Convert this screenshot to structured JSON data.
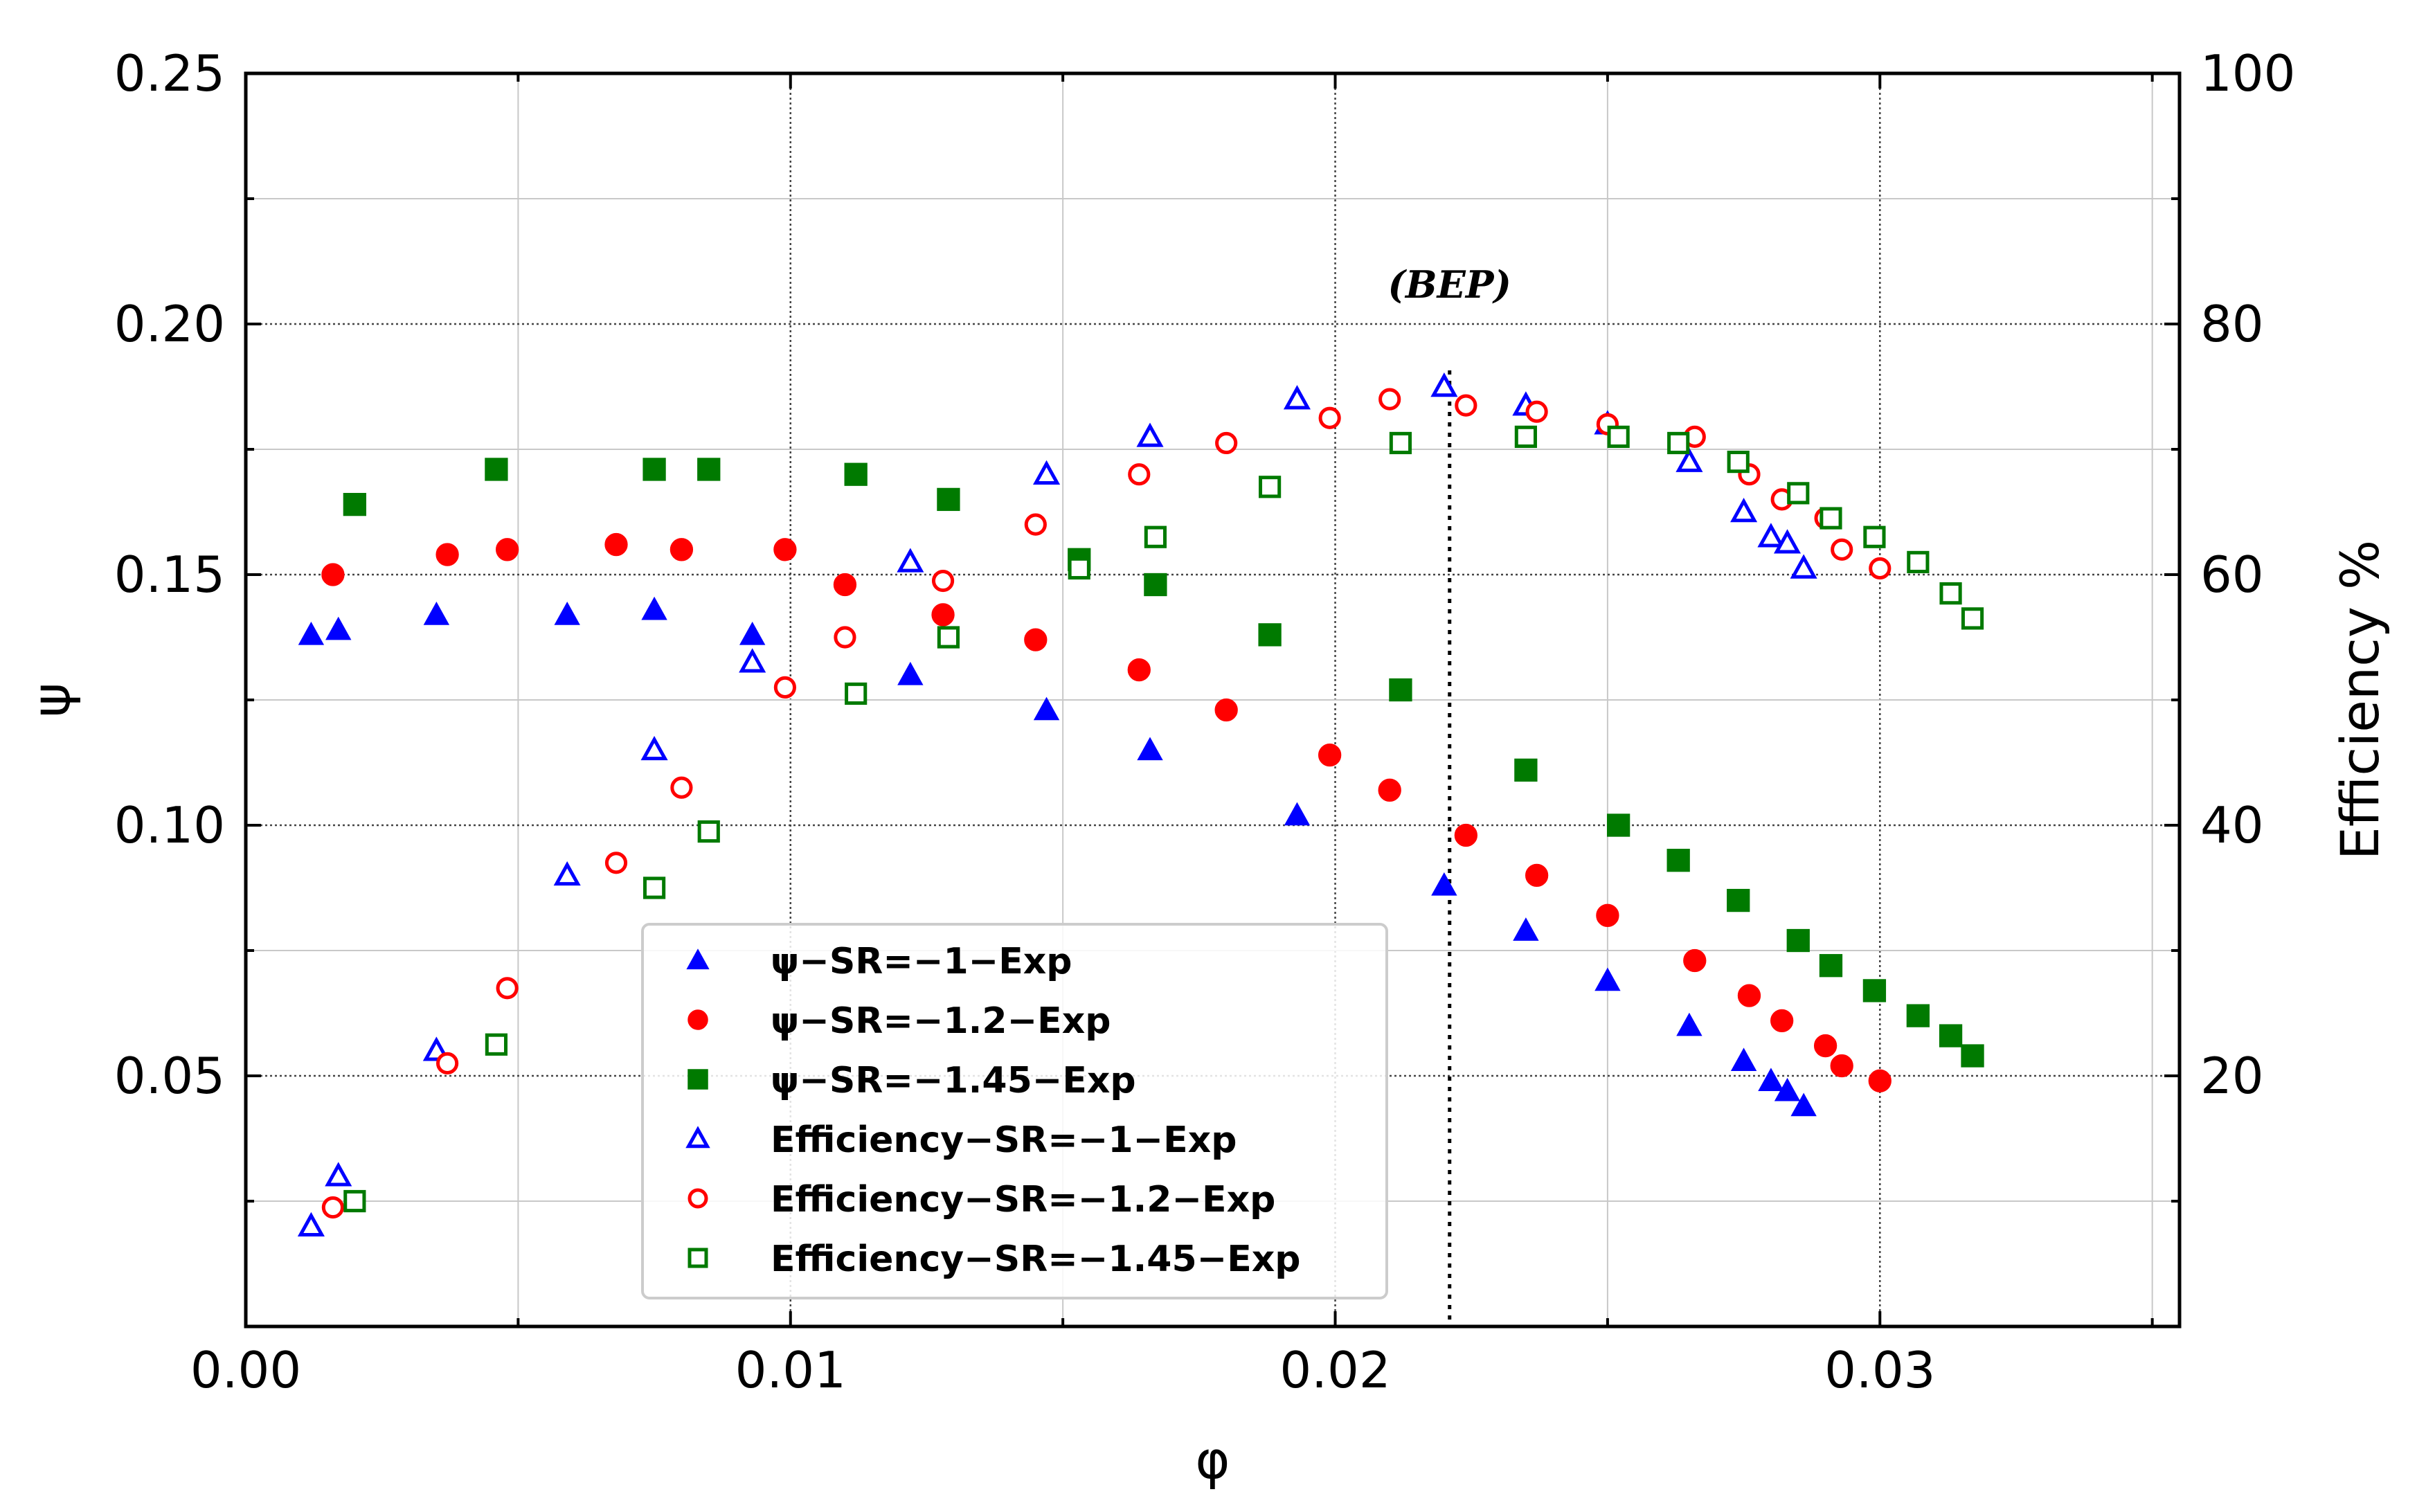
{
  "chart_data": {
    "type": "scatter",
    "title": "",
    "xlabel": "φ",
    "ylabel": "ψ",
    "y2label": "Efficiency %",
    "xlim": [
      0.0,
      0.0355
    ],
    "ylim": [
      0.0,
      0.25
    ],
    "y2lim": [
      0,
      100
    ],
    "grid": true,
    "legend_position": "lower-center",
    "x_ticks": [
      "0.00",
      "0.01",
      "0.02",
      "0.03"
    ],
    "y_ticks": [
      "0.05",
      "0.10",
      "0.15",
      "0.20",
      "0.25"
    ],
    "y2_ticks": [
      "20",
      "40",
      "60",
      "80",
      "100"
    ],
    "annotation": {
      "text": "(BEP)",
      "x": 0.0221
    },
    "colors": {
      "blue": "#0000ff",
      "red": "#ff0000",
      "green": "#007a00"
    },
    "series": [
      {
        "name": "ψ−SR=−1−Exp",
        "axis": "left",
        "marker": "triangle",
        "filled": true,
        "color": "#0000ff",
        "x": [
          0.0012,
          0.0017,
          0.0035,
          0.0059,
          0.0075,
          0.0093,
          0.0122,
          0.0147,
          0.0166,
          0.0193,
          0.022,
          0.0235,
          0.025,
          0.0265,
          0.0275,
          0.028,
          0.0283,
          0.0286
        ],
        "y": [
          0.138,
          0.139,
          0.142,
          0.142,
          0.143,
          0.138,
          0.13,
          0.123,
          0.115,
          0.102,
          0.088,
          0.079,
          0.069,
          0.06,
          0.053,
          0.049,
          0.047,
          0.044
        ]
      },
      {
        "name": "ψ−SR=−1.2−Exp",
        "axis": "left",
        "marker": "circle",
        "filled": true,
        "color": "#ff0000",
        "x": [
          0.0016,
          0.0037,
          0.0048,
          0.0068,
          0.008,
          0.0099,
          0.011,
          0.0128,
          0.0145,
          0.0164,
          0.018,
          0.0199,
          0.021,
          0.0224,
          0.0237,
          0.025,
          0.0266,
          0.0276,
          0.0282,
          0.029,
          0.0293,
          0.03
        ],
        "y": [
          0.15,
          0.154,
          0.155,
          0.156,
          0.155,
          0.155,
          0.148,
          0.142,
          0.137,
          0.131,
          0.123,
          0.114,
          0.107,
          0.098,
          0.09,
          0.082,
          0.073,
          0.066,
          0.061,
          0.056,
          0.052,
          0.049
        ]
      },
      {
        "name": "ψ−SR=−1.45−Exp",
        "axis": "left",
        "marker": "square",
        "filled": true,
        "color": "#007a00",
        "x": [
          0.002,
          0.0046,
          0.0075,
          0.0085,
          0.0112,
          0.0129,
          0.0153,
          0.0167,
          0.0188,
          0.0212,
          0.0235,
          0.0252,
          0.0263,
          0.0274,
          0.0285,
          0.0291,
          0.0299,
          0.0307,
          0.0313,
          0.0317
        ],
        "y": [
          0.164,
          0.171,
          0.171,
          0.171,
          0.17,
          0.165,
          0.153,
          0.148,
          0.138,
          0.127,
          0.111,
          0.1,
          0.093,
          0.085,
          0.077,
          0.072,
          0.067,
          0.062,
          0.058,
          0.054
        ]
      },
      {
        "name": "Efficiency−SR=−1−Exp",
        "axis": "right",
        "marker": "triangle",
        "filled": false,
        "color": "#0000ff",
        "x": [
          0.0012,
          0.0017,
          0.0035,
          0.0059,
          0.0075,
          0.0093,
          0.0122,
          0.0147,
          0.0166,
          0.0193,
          0.022,
          0.0235,
          0.025,
          0.0265,
          0.0275,
          0.028,
          0.0283,
          0.0286
        ],
        "y": [
          8,
          12,
          22,
          36,
          46,
          53,
          61,
          68,
          71,
          74,
          75,
          73.5,
          72,
          69,
          65,
          63,
          62.5,
          60.5
        ]
      },
      {
        "name": "Efficiency−SR=−1.2−Exp",
        "axis": "right",
        "marker": "circle",
        "filled": false,
        "color": "#ff0000",
        "x": [
          0.0016,
          0.0037,
          0.0048,
          0.0068,
          0.008,
          0.0099,
          0.011,
          0.0128,
          0.0145,
          0.0164,
          0.018,
          0.0199,
          0.021,
          0.0224,
          0.0237,
          0.025,
          0.0266,
          0.0276,
          0.0282,
          0.029,
          0.0293,
          0.03
        ],
        "y": [
          9.5,
          21,
          27,
          37,
          43,
          51,
          55,
          59.5,
          64,
          68,
          70.5,
          72.5,
          74,
          73.5,
          73,
          72,
          71,
          68,
          66,
          64.5,
          62,
          60.5
        ]
      },
      {
        "name": "Efficiency−SR=−1.45−Exp",
        "axis": "right",
        "marker": "square",
        "filled": false,
        "color": "#007a00",
        "x": [
          0.002,
          0.0046,
          0.0075,
          0.0085,
          0.0112,
          0.0129,
          0.0153,
          0.0167,
          0.0188,
          0.0212,
          0.0235,
          0.0252,
          0.0263,
          0.0274,
          0.0285,
          0.0291,
          0.0299,
          0.0307,
          0.0313,
          0.0317
        ],
        "y": [
          10,
          22.5,
          35,
          39.5,
          50.5,
          55,
          60.5,
          63,
          67,
          70.5,
          71,
          71,
          70.5,
          69,
          66.5,
          64.5,
          63,
          61,
          58.5,
          56.5
        ]
      }
    ]
  }
}
